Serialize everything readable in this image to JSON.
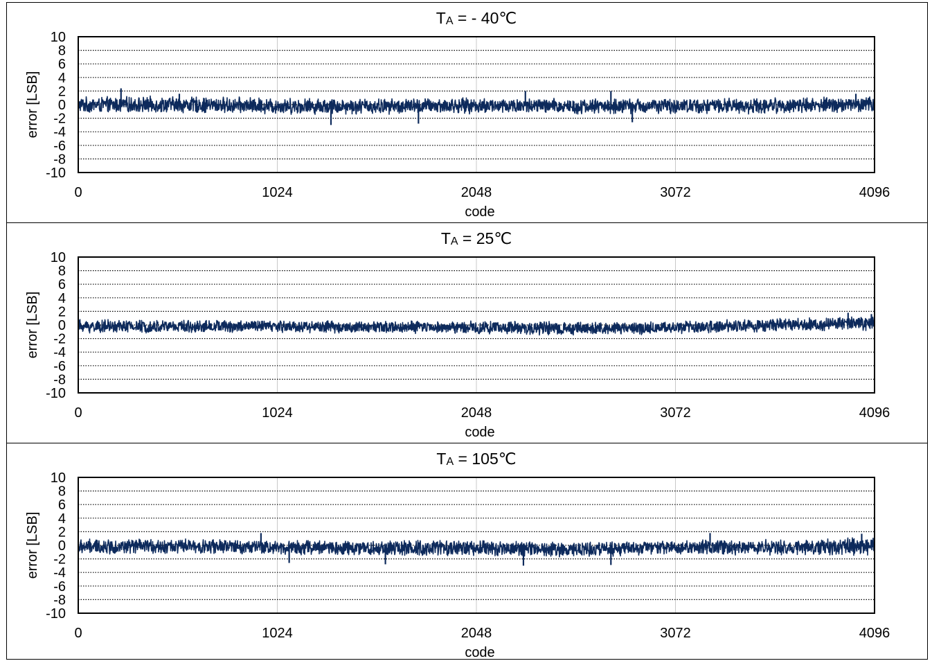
{
  "chart_data": [
    {
      "type": "line",
      "title": {
        "prefix": "T",
        "subscript": "A",
        "text": " = - 40℃"
      },
      "xlabel": "code",
      "ylabel": "error [LSB]",
      "xlim": [
        0,
        4096
      ],
      "ylim": [
        -10,
        10
      ],
      "xticks": [
        "0",
        "1024",
        "2048",
        "3072",
        "4096"
      ],
      "yticks": [
        "10",
        "8",
        "6",
        "4",
        "2",
        "0",
        "-2",
        "-4",
        "-6",
        "-8",
        "-10"
      ],
      "grid": {
        "x": true,
        "y": true
      },
      "series": [
        {
          "color": "#0d2a5c",
          "envelope": {
            "x": [
              0,
              512,
              1024,
              1536,
              2048,
              2560,
              3072,
              3584,
              4096
            ],
            "min": [
              -1.3,
              -1.3,
              -1.5,
              -1.5,
              -1.4,
              -1.5,
              -1.4,
              -1.4,
              -1.2
            ],
            "max": [
              1.2,
              1.3,
              1.1,
              1.0,
              1.1,
              1.0,
              1.0,
              1.1,
              1.3
            ]
          },
          "spikes": [
            {
              "x": 220,
              "y": 2.4
            },
            {
              "x": 520,
              "y": 1.6
            },
            {
              "x": 1300,
              "y": -3.0
            },
            {
              "x": 1750,
              "y": -2.8
            },
            {
              "x": 2300,
              "y": 2.0
            },
            {
              "x": 2740,
              "y": 2.0
            },
            {
              "x": 2850,
              "y": -2.6
            },
            {
              "x": 4000,
              "y": 1.6
            }
          ]
        }
      ]
    },
    {
      "type": "line",
      "title": {
        "prefix": "T",
        "subscript": "A",
        "text": " = 25℃"
      },
      "xlabel": "code",
      "ylabel": "error [LSB]",
      "xlim": [
        0,
        4096
      ],
      "ylim": [
        -10,
        10
      ],
      "xticks": [
        "0",
        "1024",
        "2048",
        "3072",
        "4096"
      ],
      "yticks": [
        "10",
        "8",
        "6",
        "4",
        "2",
        "0",
        "-2",
        "-4",
        "-6",
        "-8",
        "-10"
      ],
      "grid": {
        "x": true,
        "y": true
      },
      "series": [
        {
          "color": "#0d2a5c",
          "envelope": {
            "x": [
              0,
              512,
              1024,
              1536,
              2048,
              2560,
              3072,
              3584,
              4096
            ],
            "min": [
              -1.3,
              -1.2,
              -1.2,
              -1.3,
              -1.4,
              -1.6,
              -1.4,
              -1.1,
              -0.9
            ],
            "max": [
              0.9,
              0.8,
              0.8,
              0.6,
              0.7,
              0.5,
              0.6,
              1.0,
              1.4
            ]
          },
          "spikes": [
            {
              "x": 3960,
              "y": 1.8
            },
            {
              "x": 4080,
              "y": 1.6
            }
          ]
        }
      ]
    },
    {
      "type": "line",
      "title": {
        "prefix": "T",
        "subscript": "A",
        "text": " = 105℃"
      },
      "xlabel": "code",
      "ylabel": "error [LSB]",
      "xlim": [
        0,
        4096
      ],
      "ylim": [
        -10,
        10
      ],
      "xticks": [
        "0",
        "1024",
        "2048",
        "3072",
        "4096"
      ],
      "yticks": [
        "10",
        "8",
        "6",
        "4",
        "2",
        "0",
        "-2",
        "-4",
        "-6",
        "-8",
        "-10"
      ],
      "grid": {
        "x": true,
        "y": true
      },
      "series": [
        {
          "color": "#0d2a5c",
          "envelope": {
            "x": [
              0,
              512,
              1024,
              1536,
              2048,
              2560,
              3072,
              3584,
              4096
            ],
            "min": [
              -1.4,
              -1.3,
              -1.5,
              -1.7,
              -1.6,
              -1.8,
              -1.5,
              -1.5,
              -1.6
            ],
            "max": [
              1.0,
              1.0,
              0.9,
              0.8,
              0.8,
              0.6,
              0.8,
              0.9,
              1.3
            ]
          },
          "spikes": [
            {
              "x": 940,
              "y": 1.8
            },
            {
              "x": 1085,
              "y": -2.6
            },
            {
              "x": 1580,
              "y": -2.8
            },
            {
              "x": 2290,
              "y": -3.0
            },
            {
              "x": 2740,
              "y": -2.9
            },
            {
              "x": 3250,
              "y": 1.8
            },
            {
              "x": 4030,
              "y": 1.7
            }
          ]
        }
      ]
    }
  ]
}
